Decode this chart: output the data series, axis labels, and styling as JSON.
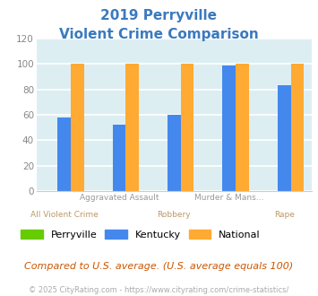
{
  "title_line1": "2019 Perryville",
  "title_line2": "Violent Crime Comparison",
  "title_color": "#3a7abf",
  "categories": [
    "All Violent Crime",
    "Aggravated Assault",
    "Robbery",
    "Murder & Mans...",
    "Rape"
  ],
  "line1_labels": [
    "",
    "Aggravated Assault",
    "",
    "Murder & Mans...",
    ""
  ],
  "line2_labels": [
    "All Violent Crime",
    "",
    "Robbery",
    "",
    "Rape"
  ],
  "series": {
    "Perryville": [
      0,
      0,
      0,
      0,
      0
    ],
    "Kentucky": [
      58,
      52,
      60,
      99,
      83
    ],
    "National": [
      100,
      100,
      100,
      100,
      100
    ]
  },
  "colors": {
    "Perryville": "#66cc00",
    "Kentucky": "#4488ee",
    "National": "#ffaa33"
  },
  "ylim": [
    0,
    120
  ],
  "yticks": [
    0,
    20,
    40,
    60,
    80,
    100,
    120
  ],
  "background_color": "#ddeef3",
  "grid_color": "#ffffff",
  "footnote": "Compared to U.S. average. (U.S. average equals 100)",
  "footnote_color": "#cc5500",
  "copyright": "© 2025 CityRating.com - https://www.cityrating.com/crime-statistics/",
  "copyright_color": "#aaaaaa",
  "label_color_top": "#999999",
  "label_color_bottom": "#bb9966"
}
